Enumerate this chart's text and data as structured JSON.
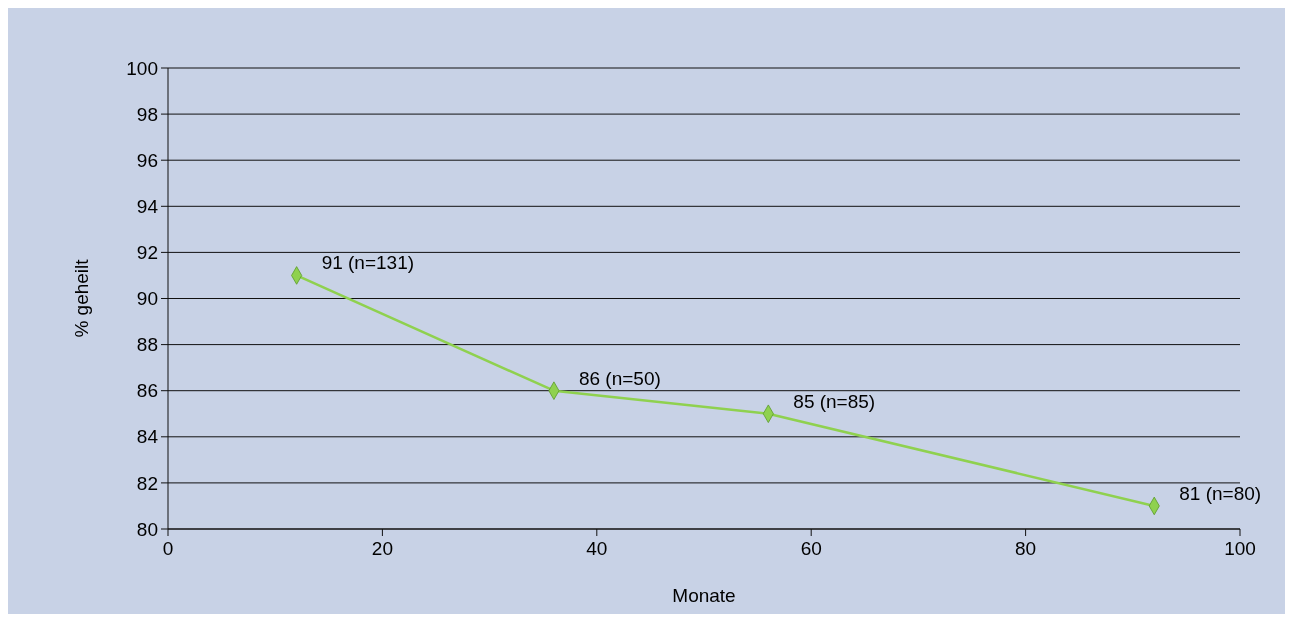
{
  "chart_data": {
    "type": "line",
    "xlabel": "Monate",
    "ylabel": "% geheilt",
    "x": [
      12,
      36,
      56,
      92
    ],
    "series": [
      {
        "color": "#8fd14f",
        "values": [
          91,
          86,
          85,
          81
        ],
        "value_labels": [
          "91 (n=131)",
          "86 (n=50)",
          "85 (n=85)",
          "81 (n=80)"
        ]
      }
    ],
    "xlim": [
      0,
      100
    ],
    "xticks": [
      0,
      20,
      40,
      60,
      80,
      100
    ],
    "ylim": [
      80,
      100
    ],
    "yticks": [
      80,
      82,
      84,
      86,
      88,
      90,
      92,
      94,
      96,
      98,
      100
    ],
    "grid": "y",
    "marker": "diamond",
    "line_style": "solid"
  }
}
